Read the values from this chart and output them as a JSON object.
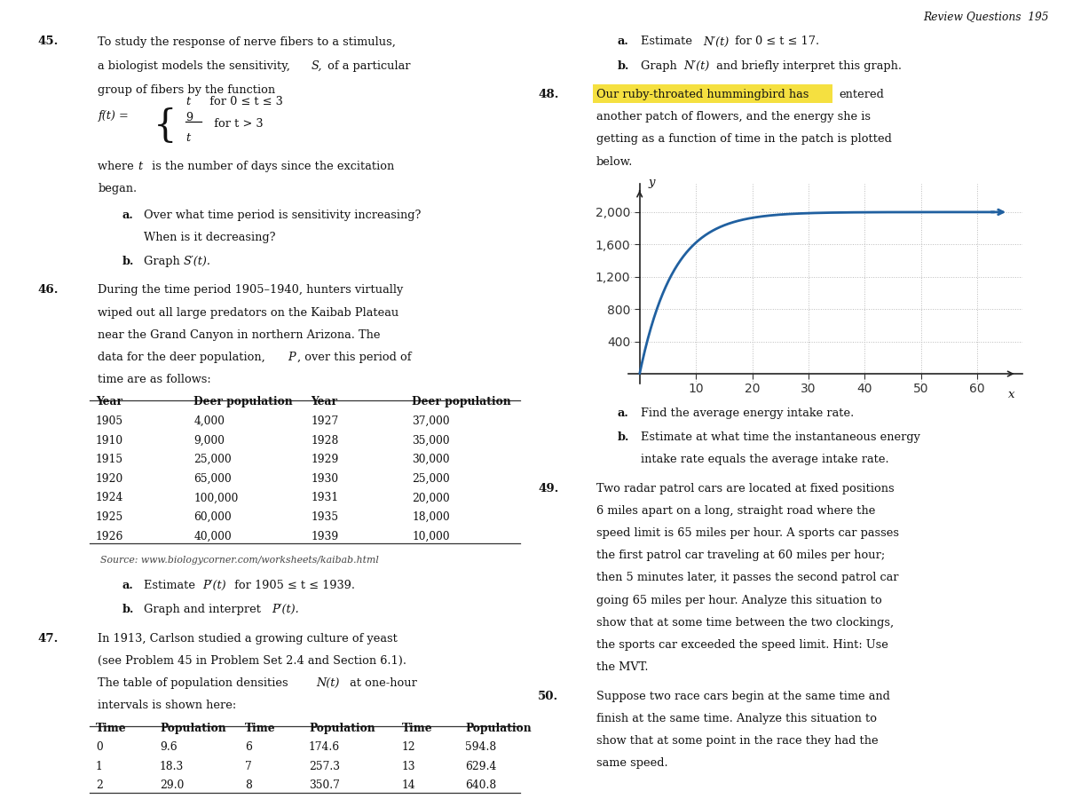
{
  "bg_color": "#ffffff",
  "graph": {
    "x_ticks": [
      10,
      20,
      30,
      40,
      50,
      60
    ],
    "y_ticks": [
      400,
      800,
      1200,
      1600,
      2000
    ],
    "curve_color": "#2060a0",
    "grid_color": "#bbbbbb",
    "grid_style": ":"
  },
  "left_col": {
    "table46_rows": [
      [
        "1905",
        "4,000",
        "1927",
        "37,000"
      ],
      [
        "1910",
        "9,000",
        "1928",
        "35,000"
      ],
      [
        "1915",
        "25,000",
        "1929",
        "30,000"
      ],
      [
        "1920",
        "65,000",
        "1930",
        "25,000"
      ],
      [
        "1924",
        "100,000",
        "1931",
        "20,000"
      ],
      [
        "1925",
        "60,000",
        "1935",
        "18,000"
      ],
      [
        "1926",
        "40,000",
        "1939",
        "10,000"
      ]
    ],
    "table47_rows": [
      [
        "0",
        "9.6",
        "6",
        "174.6",
        "12",
        "594.8"
      ],
      [
        "1",
        "18.3",
        "7",
        "257.3",
        "13",
        "629.4"
      ],
      [
        "2",
        "29.0",
        "8",
        "350.7",
        "14",
        "640.8"
      ]
    ]
  },
  "top_header": "Review Questions  195"
}
